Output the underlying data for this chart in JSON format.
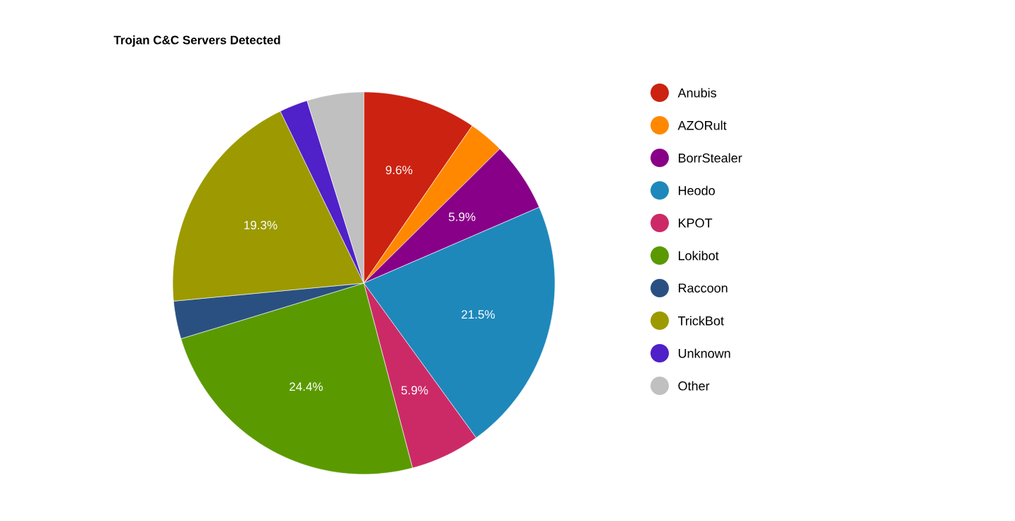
{
  "chart_data": {
    "type": "pie",
    "title": "Trojan C&C Servers Detected",
    "categories": [
      "Anubis",
      "AZORult",
      "BorrStealer",
      "Heodo",
      "KPOT",
      "Lokibot",
      "Raccoon",
      "TrickBot",
      "Unknown",
      "Other"
    ],
    "values": [
      9.6,
      3.0,
      5.9,
      21.5,
      5.9,
      24.4,
      3.2,
      19.3,
      2.4,
      4.8
    ],
    "colors": [
      "#cc2211",
      "#ff8800",
      "#880088",
      "#1e88bb",
      "#cc2a66",
      "#5a9a00",
      "#2a5082",
      "#9c9a00",
      "#5020c8",
      "#c0c0c0"
    ],
    "value_labels": [
      "9.6%",
      null,
      "5.9%",
      "21.5%",
      "5.9%",
      "24.4%",
      null,
      "19.3%",
      null,
      null
    ],
    "legend": "right"
  }
}
